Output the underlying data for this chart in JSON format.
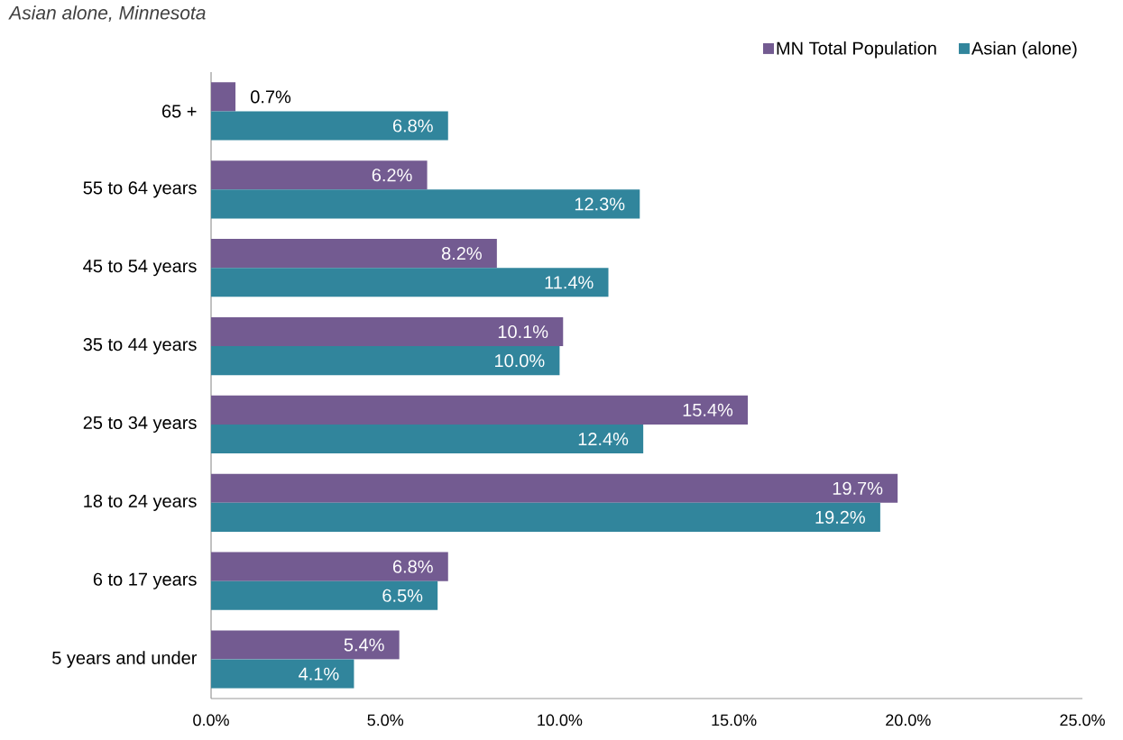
{
  "chart_data": {
    "type": "bar",
    "orientation": "horizontal",
    "subtitle": "Asian alone, Minnesota",
    "categories": [
      "65 +",
      "55 to 64 years",
      "45 to 54 years",
      "35 to 44 years",
      "25 to 34 years",
      "18 to 24 years",
      "6 to 17 years",
      "5 years and under"
    ],
    "series": [
      {
        "name": "MN Total Population",
        "color": "#735b91",
        "values": [
          0.7,
          6.2,
          8.2,
          10.1,
          15.4,
          19.7,
          6.8,
          5.4
        ],
        "value_labels": [
          "0.7%",
          "6.2%",
          "8.2%",
          "10.1%",
          "15.4%",
          "19.7%",
          "6.8%",
          "5.4%"
        ]
      },
      {
        "name": "Asian (alone)",
        "color": "#31859c",
        "values": [
          6.8,
          12.3,
          11.4,
          10.0,
          12.4,
          19.2,
          6.5,
          4.1
        ],
        "value_labels": [
          "6.8%",
          "12.3%",
          "11.4%",
          "10.0%",
          "12.4%",
          "19.2%",
          "6.5%",
          "4.1%"
        ]
      }
    ],
    "xlim": [
      0,
      25
    ],
    "xticks": [
      {
        "value": 0,
        "label": "0.0%"
      },
      {
        "value": 5,
        "label": "5.0%"
      },
      {
        "value": 10,
        "label": "10.0%"
      },
      {
        "value": 15,
        "label": "15.0%"
      },
      {
        "value": 20,
        "label": "20.0%"
      },
      {
        "value": 25,
        "label": "25.0%"
      }
    ],
    "grid": false,
    "legend": "top right"
  }
}
